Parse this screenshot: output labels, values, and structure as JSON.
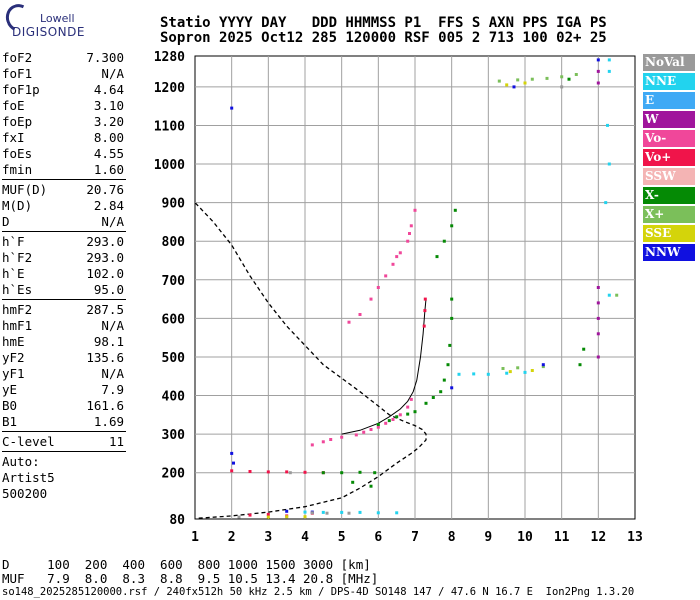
{
  "logo": {
    "top": "Lowell",
    "bottom": "DIGISONDE"
  },
  "header": {
    "line1": "Statio YYYY DAY   DDD HHMMSS P1  FFS S AXN PPS IGA PS",
    "line2": "Sopron 2025 Oct12 285 120000 RSF 005 2 713 100 02+ 25"
  },
  "params": [
    {
      "group": [
        {
          "k": "foF2",
          "v": "7.300"
        },
        {
          "k": "foF1",
          "v": "N/A"
        },
        {
          "k": "foF1p",
          "v": "4.64"
        },
        {
          "k": "foE",
          "v": "3.10"
        },
        {
          "k": "foEp",
          "v": "3.20"
        },
        {
          "k": "fxI",
          "v": "8.00"
        },
        {
          "k": "foEs",
          "v": "4.55"
        },
        {
          "k": "fmin",
          "v": "1.60"
        }
      ]
    },
    {
      "group": [
        {
          "k": "MUF(D)",
          "v": "20.76"
        },
        {
          "k": "M(D)",
          "v": "2.84"
        },
        {
          "k": "D",
          "v": "N/A"
        }
      ]
    },
    {
      "group": [
        {
          "k": "h`F",
          "v": "293.0"
        },
        {
          "k": "h`F2",
          "v": "293.0"
        },
        {
          "k": "h`E",
          "v": "102.0"
        },
        {
          "k": "h`Es",
          "v": "95.0"
        }
      ]
    },
    {
      "group": [
        {
          "k": "hmF2",
          "v": "287.5"
        },
        {
          "k": "hmF1",
          "v": "N/A"
        },
        {
          "k": "hmE",
          "v": "98.1"
        },
        {
          "k": "yF2",
          "v": "135.6"
        },
        {
          "k": "yF1",
          "v": "N/A"
        },
        {
          "k": "yE",
          "v": "7.9"
        },
        {
          "k": "B0",
          "v": "161.6"
        },
        {
          "k": "B1",
          "v": "1.69"
        }
      ]
    },
    {
      "group": [
        {
          "k": "C-level",
          "v": "11"
        }
      ]
    }
  ],
  "auto": [
    "Auto:",
    "Artist5",
    "500200"
  ],
  "legend": [
    {
      "label": "NoVal",
      "color": "#9a9a9a"
    },
    {
      "label": "NNE",
      "color": "#22d3ee"
    },
    {
      "label": "E",
      "color": "#3fa9f5"
    },
    {
      "label": "W",
      "color": "#a0159c"
    },
    {
      "label": "Vo-",
      "color": "#f0479a"
    },
    {
      "label": "Vo+",
      "color": "#f0144a"
    },
    {
      "label": "SSW",
      "color": "#f4b4b4"
    },
    {
      "label": "X-",
      "color": "#058a05"
    },
    {
      "label": "X+",
      "color": "#7bbf5a"
    },
    {
      "label": "SSE",
      "color": "#d4d40a"
    },
    {
      "label": "NNW",
      "color": "#1010e0"
    }
  ],
  "footer": {
    "d_row": "D     100  200  400  600  800 1000 1500 3000 [km]",
    "muf_row": "MUF   7.9  8.0  8.3  8.8  9.5 10.5 13.4 20.8 [MHz]",
    "file_row": "so148_2025285120000.rsf / 240fx512h 50 kHz 2.5 km / DPS-4D SO148 147 / 47.6 N 16.7 E  Ion2Png 1.3.20"
  },
  "chart_data": {
    "type": "scatter",
    "xlabel": "",
    "ylabel": "",
    "xlim": [
      1,
      13
    ],
    "ylim": [
      80,
      1280
    ],
    "x_ticks": [
      1,
      2,
      3,
      4,
      5,
      6,
      7,
      8,
      9,
      10,
      11,
      12,
      13
    ],
    "y_ticks": [
      80,
      200,
      300,
      400,
      500,
      600,
      700,
      800,
      900,
      1000,
      1100,
      1200,
      1280
    ],
    "grid": true,
    "profile_curve": {
      "name": "",
      "points": [
        [
          1.1,
          82
        ],
        [
          2,
          88
        ],
        [
          3,
          98
        ],
        [
          4,
          112
        ],
        [
          5,
          135
        ],
        [
          5.5,
          160
        ],
        [
          6,
          190
        ],
        [
          6.5,
          225
        ],
        [
          6.9,
          250
        ],
        [
          7.1,
          265
        ],
        [
          7.3,
          285
        ],
        [
          7.3,
          300
        ],
        [
          7.2,
          312
        ],
        [
          7.0,
          322
        ],
        [
          6.7,
          333
        ],
        [
          6.3,
          350
        ],
        [
          6.0,
          373
        ],
        [
          5.5,
          410
        ],
        [
          5.0,
          445
        ],
        [
          4.5,
          480
        ],
        [
          4.0,
          530
        ],
        [
          3.5,
          580
        ],
        [
          3.0,
          640
        ],
        [
          2.5,
          710
        ],
        [
          2.0,
          790
        ],
        [
          1.5,
          850
        ],
        [
          1.0,
          900
        ]
      ]
    },
    "virtual_height_trace": {
      "name": "",
      "points": [
        [
          5.0,
          300
        ],
        [
          5.5,
          310
        ],
        [
          6.0,
          328
        ],
        [
          6.3,
          345
        ],
        [
          6.6,
          365
        ],
        [
          6.8,
          385
        ],
        [
          6.95,
          410
        ],
        [
          7.05,
          440
        ],
        [
          7.15,
          500
        ],
        [
          7.22,
          560
        ],
        [
          7.27,
          620
        ],
        [
          7.3,
          650
        ]
      ]
    },
    "series": [
      {
        "name": "Vo-",
        "color": "#f0479a",
        "points": [
          [
            5.4,
            298
          ],
          [
            5.6,
            305
          ],
          [
            5.8,
            312
          ],
          [
            6.0,
            318
          ],
          [
            6.2,
            328
          ],
          [
            6.4,
            338
          ],
          [
            6.6,
            350
          ],
          [
            6.8,
            370
          ],
          [
            6.9,
            390
          ],
          [
            4.5,
            280
          ],
          [
            4.2,
            272
          ],
          [
            4.7,
            286
          ],
          [
            5.0,
            292
          ],
          [
            5.2,
            590
          ],
          [
            5.5,
            610
          ],
          [
            5.8,
            650
          ],
          [
            6.0,
            680
          ],
          [
            6.2,
            710
          ],
          [
            6.4,
            740
          ],
          [
            6.6,
            770
          ],
          [
            6.8,
            800
          ],
          [
            6.9,
            840
          ],
          [
            7.0,
            880
          ],
          [
            6.85,
            820
          ],
          [
            6.5,
            760
          ]
        ]
      },
      {
        "name": "Vo+",
        "color": "#f0144a",
        "points": [
          [
            2.0,
            205
          ],
          [
            2.5,
            203
          ],
          [
            3.0,
            202
          ],
          [
            3.5,
            202
          ],
          [
            4.0,
            201
          ],
          [
            4.5,
            200
          ],
          [
            7.25,
            580
          ],
          [
            7.27,
            620
          ],
          [
            7.28,
            650
          ],
          [
            2.5,
            90
          ],
          [
            3.0,
            92
          ],
          [
            3.5,
            88
          ],
          [
            4.2,
            95
          ]
        ]
      },
      {
        "name": "X-",
        "color": "#058a05",
        "points": [
          [
            4.5,
            200
          ],
          [
            5.0,
            200
          ],
          [
            5.5,
            201
          ],
          [
            5.9,
            200
          ],
          [
            6.0,
            325
          ],
          [
            6.3,
            335
          ],
          [
            6.5,
            345
          ],
          [
            6.8,
            352
          ],
          [
            7.0,
            358
          ],
          [
            7.3,
            380
          ],
          [
            7.5,
            395
          ],
          [
            7.7,
            410
          ],
          [
            7.8,
            440
          ],
          [
            7.9,
            480
          ],
          [
            7.95,
            530
          ],
          [
            8.0,
            600
          ],
          [
            8.0,
            650
          ],
          [
            7.6,
            760
          ],
          [
            7.8,
            800
          ],
          [
            8.0,
            840
          ],
          [
            8.1,
            880
          ],
          [
            5.8,
            165
          ],
          [
            5.3,
            175
          ],
          [
            11.5,
            480
          ],
          [
            11.6,
            520
          ],
          [
            11.2,
            1220
          ]
        ]
      },
      {
        "name": "NNE",
        "color": "#22d3ee",
        "points": [
          [
            5.0,
            97
          ],
          [
            5.5,
            97
          ],
          [
            6.0,
            96
          ],
          [
            6.5,
            96
          ],
          [
            4.0,
            98
          ],
          [
            4.5,
            97
          ],
          [
            9.0,
            455
          ],
          [
            9.5,
            458
          ],
          [
            10.0,
            460
          ],
          [
            8.2,
            455
          ],
          [
            8.6,
            456
          ],
          [
            12.3,
            1270
          ],
          [
            12.3,
            1240
          ],
          [
            12.25,
            1100
          ],
          [
            12.3,
            1000
          ],
          [
            12.2,
            900
          ],
          [
            12.3,
            660
          ]
        ]
      },
      {
        "name": "X+",
        "color": "#7bbf5a",
        "points": [
          [
            9.3,
            1215
          ],
          [
            9.8,
            1218
          ],
          [
            10.2,
            1220
          ],
          [
            10.6,
            1222
          ],
          [
            11.0,
            1226
          ],
          [
            11.4,
            1232
          ],
          [
            9.4,
            470
          ],
          [
            9.8,
            472
          ],
          [
            10.5,
            475
          ],
          [
            12.5,
            660
          ]
        ]
      },
      {
        "name": "NNW",
        "color": "#1010e0",
        "points": [
          [
            2.0,
            250
          ],
          [
            2.05,
            225
          ],
          [
            2.0,
            1145
          ],
          [
            3.5,
            100
          ],
          [
            4.2,
            98
          ],
          [
            8.0,
            420
          ],
          [
            9.7,
            1200
          ],
          [
            10.5,
            480
          ],
          [
            12.0,
            1270
          ]
        ]
      },
      {
        "name": "W",
        "color": "#a0159c",
        "points": [
          [
            12.0,
            1240
          ],
          [
            12.0,
            1210
          ],
          [
            12.0,
            680
          ],
          [
            12.0,
            640
          ],
          [
            12.0,
            600
          ],
          [
            12.0,
            560
          ],
          [
            12.0,
            500
          ]
        ]
      },
      {
        "name": "SSE",
        "color": "#d4d40a",
        "points": [
          [
            3.0,
            85
          ],
          [
            3.5,
            86
          ],
          [
            4.0,
            86
          ],
          [
            9.5,
            1205
          ],
          [
            10.0,
            1210
          ],
          [
            9.6,
            462
          ],
          [
            10.2,
            465
          ]
        ]
      },
      {
        "name": "NoVal",
        "color": "#9a9a9a",
        "points": [
          [
            4.2,
            96
          ],
          [
            4.6,
            95
          ],
          [
            5.2,
            95
          ],
          [
            2.2,
            85
          ],
          [
            11.0,
            1200
          ],
          [
            3.6,
            200
          ]
        ]
      }
    ]
  }
}
